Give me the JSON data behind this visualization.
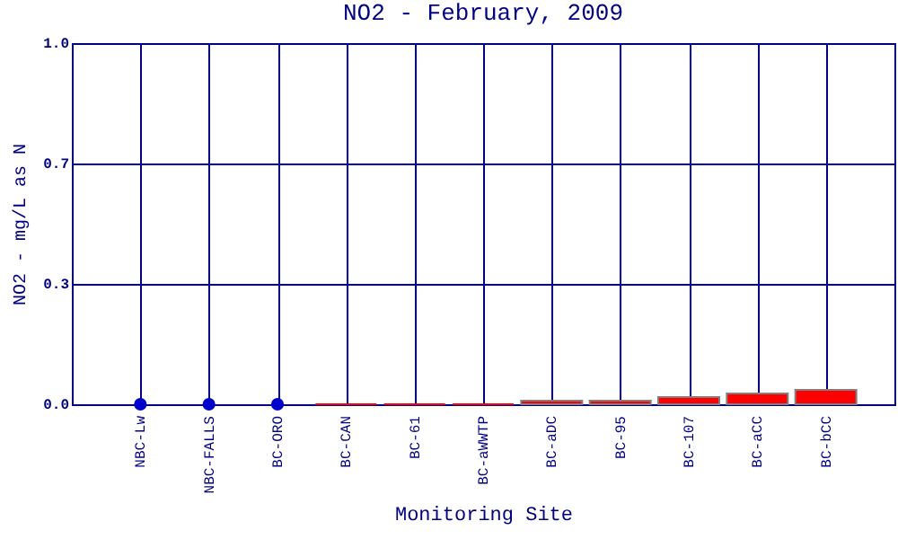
{
  "chart_data": {
    "type": "bar",
    "title": "NO2 - February, 2009",
    "xlabel": "Monitoring Site",
    "ylabel": "NO2 - mg/L as N",
    "categories": [
      "NBC-Lw",
      "NBC-FALLS",
      "BC-ORO",
      "BC-CAN",
      "BC-61",
      "BC-aWWTP",
      "BC-aDC",
      "BC-95",
      "BC-107",
      "BC-aCC",
      "BC-bCC"
    ],
    "series": [
      {
        "color": "#ff0000",
        "values": [
          null,
          null,
          null,
          0,
          0,
          0,
          0.01,
          0.01,
          0.02,
          0.03,
          0.04
        ]
      },
      {
        "type": "scatter",
        "color": "#0000cc",
        "marker": "circle",
        "x": [
          "NBC-Lw",
          "NBC-FALLS",
          "BC-ORO"
        ],
        "values": [
          0,
          0,
          0
        ]
      }
    ],
    "ylim": [
      0,
      1
    ],
    "yticks": [
      {
        "value": 0,
        "label": "0.0"
      },
      {
        "value": 0.333,
        "label": "0.3"
      },
      {
        "value": 0.667,
        "label": "0.7"
      },
      {
        "value": 1,
        "label": "1.0"
      }
    ],
    "grid": true
  }
}
